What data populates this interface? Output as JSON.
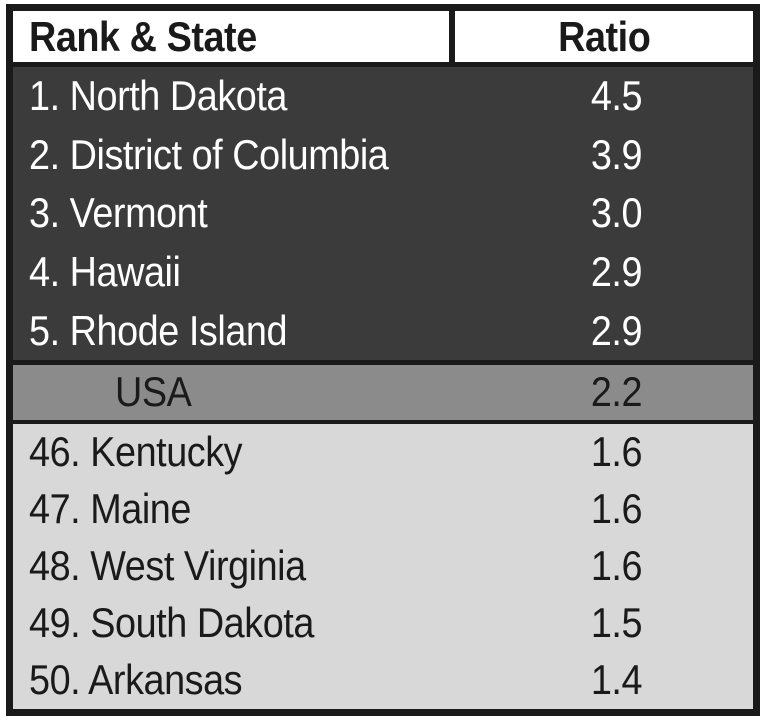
{
  "colors": {
    "page-bg": "#ffffff",
    "header-bg": "#ffffff",
    "border": "#1a1a1a",
    "dark-row": "#3b3b3b",
    "dark-row-text": "#ffffff",
    "usa-row": "#8b8b8b",
    "light-row": "#d8d8d8",
    "text-dark": "#1a1a1a"
  },
  "header": {
    "rank_state": "Rank & State",
    "ratio": "Ratio"
  },
  "top_states": [
    {
      "label": "1. North Dakota",
      "ratio": "4.5"
    },
    {
      "label": "2. District of Columbia",
      "ratio": "3.9"
    },
    {
      "label": "3. Vermont",
      "ratio": "3.0"
    },
    {
      "label": "4. Hawaii",
      "ratio": "2.9"
    },
    {
      "label": "5. Rhode Island",
      "ratio": "2.9"
    }
  ],
  "usa": {
    "label": "USA",
    "ratio": "2.2"
  },
  "bottom_states": [
    {
      "label": "46. Kentucky",
      "ratio": "1.6"
    },
    {
      "label": "47. Maine",
      "ratio": "1.6"
    },
    {
      "label": "48. West Virginia",
      "ratio": "1.6"
    },
    {
      "label": "49. South Dakota",
      "ratio": "1.5"
    },
    {
      "label": "50. Arkansas",
      "ratio": "1.4"
    }
  ],
  "chart_data": {
    "type": "table",
    "columns": [
      "Rank & State",
      "Ratio"
    ],
    "rows": [
      [
        "1. North Dakota",
        4.5
      ],
      [
        "2. District of Columbia",
        3.9
      ],
      [
        "3. Vermont",
        3.0
      ],
      [
        "4. Hawaii",
        2.9
      ],
      [
        "5. Rhode Island",
        2.9
      ],
      [
        "USA",
        2.2
      ],
      [
        "46. Kentucky",
        1.6
      ],
      [
        "47. Maine",
        1.6
      ],
      [
        "48. West Virginia",
        1.6
      ],
      [
        "49. South Dakota",
        1.5
      ],
      [
        "50. Arkansas",
        1.4
      ]
    ]
  }
}
